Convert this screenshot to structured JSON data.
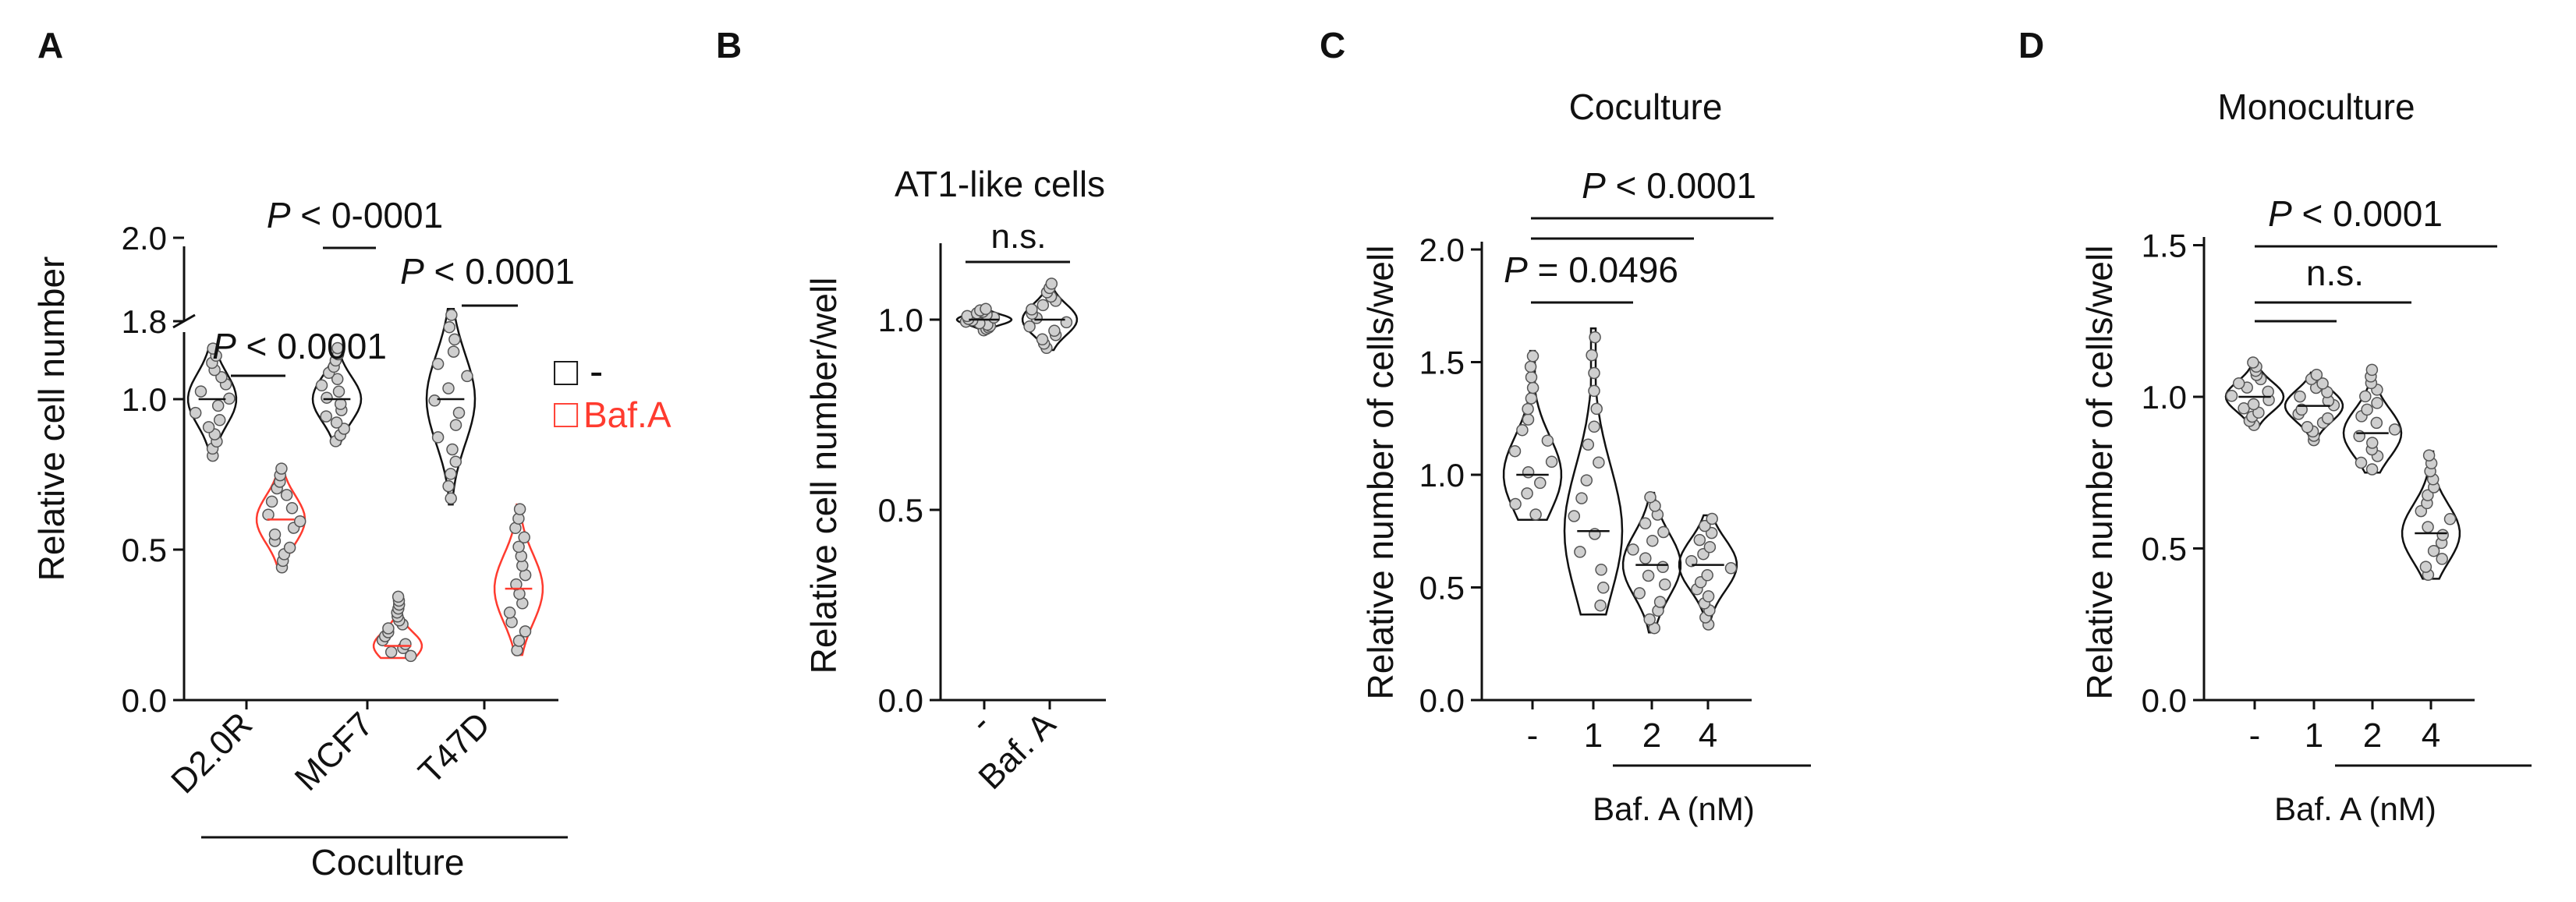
{
  "chart_data": [
    {
      "id": "A",
      "panel_letter": "A",
      "type": "violin",
      "title": "",
      "ylabel": "Relative cell number",
      "ylim": [
        0,
        2.0
      ],
      "y_axis_break": [
        1.35,
        1.75
      ],
      "yticks": [
        "0.0",
        "0.5",
        "1.0",
        "1.8",
        "2.0"
      ],
      "ytick_values": [
        0,
        0.5,
        1.0,
        1.8,
        2.0
      ],
      "categories": [
        "D2.0R",
        "MCF7",
        "T47D"
      ],
      "group_label": "Coculture",
      "legend": [
        {
          "symbol": "□",
          "label": "-",
          "color": "#111111"
        },
        {
          "symbol": "□",
          "label": "Baf.A",
          "color": "#ff3b2f"
        }
      ],
      "series": [
        {
          "name": "-",
          "color": "#111111",
          "values": [
            1.0,
            1.0,
            1.0
          ]
        },
        {
          "name": "Baf.A",
          "color": "#ff3b2f",
          "values": [
            0.62,
            0.18,
            0.36
          ]
        }
      ],
      "distributions": [
        {
          "category": "D2.0R",
          "group": "-",
          "color": "#111111",
          "min": 0.8,
          "max": 1.18,
          "median": 1.0
        },
        {
          "category": "D2.0R",
          "group": "Baf.A",
          "color": "#ff3b2f",
          "min": 0.43,
          "max": 0.78,
          "median": 0.6
        },
        {
          "category": "MCF7",
          "group": "-",
          "color": "#111111",
          "min": 0.85,
          "max": 1.18,
          "median": 1.0
        },
        {
          "category": "MCF7",
          "group": "Baf.A",
          "color": "#ff3b2f",
          "min": 0.14,
          "max": 0.35,
          "median": 0.18
        },
        {
          "category": "T47D",
          "group": "-",
          "color": "#111111",
          "min": 0.65,
          "max": 1.3,
          "median": 1.0
        },
        {
          "category": "T47D",
          "group": "Baf.A",
          "color": "#ff3b2f",
          "min": 0.15,
          "max": 0.65,
          "median": 0.37
        }
      ],
      "annotations": [
        {
          "text": "P < 0.0001",
          "from": "D2.0R|-",
          "to": "D2.0R|Baf.A",
          "y": 1.2
        },
        {
          "text": "P < 0-0001",
          "from": "MCF7|-",
          "to": "MCF7|Baf.A",
          "y": 1.95
        },
        {
          "text": "P < 0.0001",
          "from": "T47D|-",
          "to": "T47D|Baf.A",
          "y": 1.88
        }
      ]
    },
    {
      "id": "B",
      "panel_letter": "B",
      "type": "violin",
      "title": "AT1-like cells",
      "ylabel": "Relative cell number/well",
      "ylim": [
        0,
        1.2
      ],
      "yticks": [
        "0.0",
        "0.5",
        "1.0"
      ],
      "ytick_values": [
        0,
        0.5,
        1.0
      ],
      "categories": [
        "-",
        "Baf. A"
      ],
      "series": [
        {
          "name": "",
          "color": "#111111",
          "values": [
            1.0,
            1.0
          ]
        }
      ],
      "distributions": [
        {
          "category": "-",
          "min": 0.97,
          "max": 1.03,
          "median": 1.0
        },
        {
          "category": "Baf. A",
          "min": 0.92,
          "max": 1.1,
          "median": 1.0
        }
      ],
      "annotations": [
        {
          "text": "n.s.",
          "from": "-",
          "to": "Baf. A",
          "y": 1.12
        }
      ]
    },
    {
      "id": "C",
      "panel_letter": "C",
      "type": "violin",
      "title": "Coculture",
      "ylabel": "Relative number of cells/well",
      "ylim": [
        0,
        2.0
      ],
      "yticks": [
        "0.0",
        "0.5",
        "1.0",
        "1.5",
        "2.0"
      ],
      "ytick_values": [
        0,
        0.5,
        1.0,
        1.5,
        2.0
      ],
      "categories": [
        "-",
        "1",
        "2",
        "4"
      ],
      "group_label": "Baf. A (nM)",
      "series": [
        {
          "name": "",
          "color": "#111111",
          "values": [
            1.0,
            0.75,
            0.6,
            0.55
          ]
        }
      ],
      "distributions": [
        {
          "category": "-",
          "min": 0.8,
          "max": 1.55,
          "median": 1.0
        },
        {
          "category": "1",
          "min": 0.38,
          "max": 1.65,
          "median": 0.75
        },
        {
          "category": "2",
          "min": 0.3,
          "max": 0.92,
          "median": 0.6
        },
        {
          "category": "4",
          "min": 0.32,
          "max": 0.82,
          "median": 0.6
        }
      ],
      "annotations": [
        {
          "text": "P = 0.0496",
          "from": "-",
          "to": "1",
          "y": 1.72
        },
        {
          "text": "",
          "from": "-",
          "to": "2",
          "y": 1.9
        },
        {
          "text": "P < 0.0001",
          "from": "-",
          "to": "4",
          "y": 2.03
        }
      ]
    },
    {
      "id": "D",
      "panel_letter": "D",
      "type": "violin",
      "title": "Monoculture",
      "ylabel": "Relative number of cells/well",
      "ylim": [
        0,
        1.5
      ],
      "yticks": [
        "0.0",
        "0.5",
        "1.0",
        "1.5"
      ],
      "ytick_values": [
        0,
        0.5,
        1.0,
        1.5
      ],
      "categories": [
        "-",
        "1",
        "2",
        "4"
      ],
      "group_label": "Baf. A (nM)",
      "series": [
        {
          "name": "",
          "color": "#111111",
          "values": [
            1.0,
            0.97,
            0.88,
            0.55
          ]
        }
      ],
      "distributions": [
        {
          "category": "-",
          "min": 0.9,
          "max": 1.12,
          "median": 1.0
        },
        {
          "category": "1",
          "min": 0.85,
          "max": 1.08,
          "median": 0.97
        },
        {
          "category": "2",
          "min": 0.75,
          "max": 1.1,
          "median": 0.88
        },
        {
          "category": "4",
          "min": 0.4,
          "max": 0.82,
          "median": 0.55
        }
      ],
      "annotations": [
        {
          "text": "",
          "from": "-",
          "to": "1",
          "y": 1.3
        },
        {
          "text": "n.s.",
          "from": "-",
          "to": "2",
          "y": 1.38
        },
        {
          "text": "P < 0.0001",
          "from": "-",
          "to": "4",
          "y": 1.5
        }
      ]
    }
  ]
}
